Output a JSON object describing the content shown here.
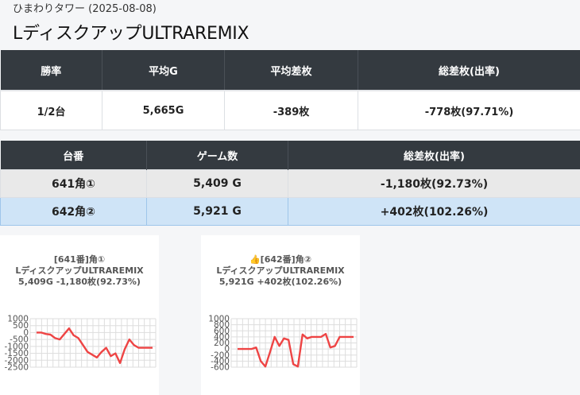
{
  "header": {
    "subtitle": "ひまわりタワー (2025-08-08)",
    "title": "LディスクアップULTRAREMIX"
  },
  "summary": {
    "headers": [
      "勝率",
      "平均G",
      "平均差枚",
      "総差枚(出率)"
    ],
    "values": [
      "1/2台",
      "5,665G",
      "-389枚",
      "-778枚(97.71%)"
    ]
  },
  "machines": {
    "headers": [
      "台番",
      "ゲーム数",
      "総差枚(出率)"
    ],
    "rows": [
      {
        "unit": "641角①",
        "games": "5,409 G",
        "diff": "-1,180枚(92.73%)"
      },
      {
        "unit": "642角②",
        "games": "5,921 G",
        "diff": "+402枚(102.26%)"
      }
    ]
  },
  "colors": {
    "line": "#ee4444",
    "header_bg": "#343a40",
    "highlight": "#cfe4f7"
  },
  "charts": [
    {
      "line1": "[641番]角①",
      "line2": "LディスクアップULTRAREMIX",
      "line3": "5,409G -1,180枚(92.73%)",
      "chart_data": {
        "type": "line",
        "yticks": [
          "1000",
          "500",
          "0",
          "-500",
          "-1000",
          "-1500",
          "-2000",
          "-2500"
        ],
        "ylim": [
          -2500,
          1000
        ],
        "values": [
          0,
          0,
          -100,
          -150,
          -400,
          -500,
          -100,
          300,
          -200,
          -400,
          -900,
          -1400,
          -1600,
          -1800,
          -1400,
          -1100,
          -1700,
          -1500,
          -2200,
          -1200,
          -500,
          -900,
          -1100,
          -1100,
          -1100,
          -1100
        ]
      }
    },
    {
      "line1": "👍[642番]角②",
      "line2": "LディスクアップULTRAREMIX",
      "line3": "5,921G +402枚(102.26%)",
      "chart_data": {
        "type": "line",
        "yticks": [
          "1000",
          "800",
          "600",
          "400",
          "200",
          "0",
          "-200",
          "-400",
          "-600"
        ],
        "ylim": [
          -600,
          1000
        ],
        "values": [
          0,
          0,
          0,
          0,
          50,
          -400,
          -580,
          -100,
          400,
          100,
          350,
          300,
          -500,
          -580,
          480,
          350,
          400,
          400,
          400,
          500,
          50,
          100,
          400,
          400,
          400,
          400
        ]
      }
    }
  ]
}
